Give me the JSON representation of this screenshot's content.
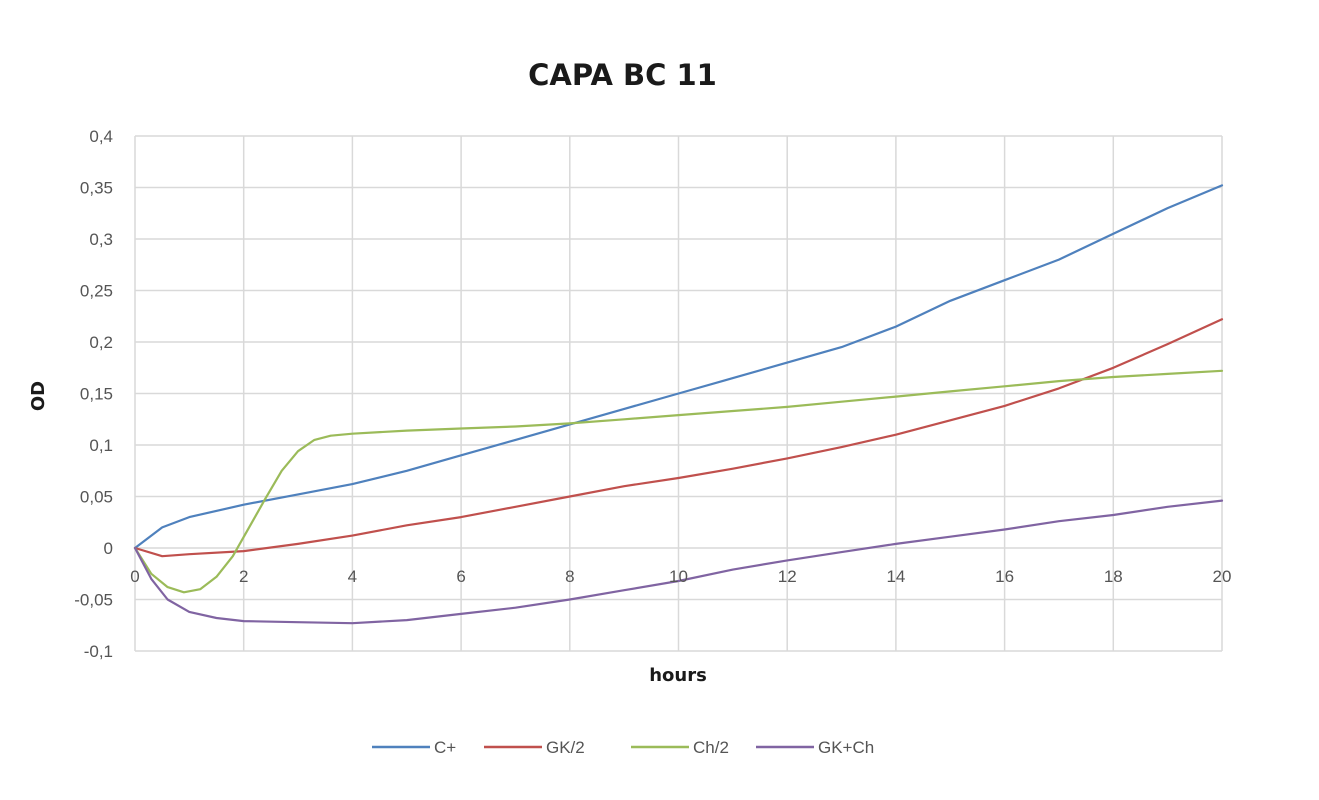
{
  "chart_data": {
    "type": "line",
    "title": "CAPA BC 11",
    "xlabel": "hours",
    "ylabel": "OD",
    "xlim": [
      0,
      20
    ],
    "ylim": [
      -0.1,
      0.4
    ],
    "x_ticks": [
      "0",
      "2",
      "4",
      "6",
      "8",
      "10",
      "12",
      "14",
      "16",
      "18",
      "20"
    ],
    "y_ticks": [
      "-0,1",
      "-0,05",
      "0",
      "0,05",
      "0,1",
      "0,15",
      "0,2",
      "0,25",
      "0,3",
      "0,35",
      "0,4"
    ],
    "grid": true,
    "legend_position": "bottom",
    "series": [
      {
        "name": "C+",
        "color": "#4f81bd",
        "x": [
          0,
          0.5,
          1,
          2,
          3,
          4,
          5,
          6,
          7,
          8,
          9,
          10,
          11,
          12,
          13,
          14,
          15,
          16,
          17,
          18,
          19,
          20
        ],
        "y": [
          0,
          0.02,
          0.03,
          0.042,
          0.052,
          0.062,
          0.075,
          0.09,
          0.105,
          0.12,
          0.135,
          0.15,
          0.165,
          0.18,
          0.195,
          0.215,
          0.24,
          0.26,
          0.28,
          0.305,
          0.33,
          0.352
        ]
      },
      {
        "name": "GK/2",
        "color": "#c0504d",
        "x": [
          0,
          0.5,
          1,
          2,
          3,
          4,
          5,
          6,
          7,
          8,
          9,
          10,
          11,
          12,
          13,
          14,
          15,
          16,
          17,
          18,
          19,
          20
        ],
        "y": [
          0,
          -0.008,
          -0.006,
          -0.003,
          0.004,
          0.012,
          0.022,
          0.03,
          0.04,
          0.05,
          0.06,
          0.068,
          0.077,
          0.087,
          0.098,
          0.11,
          0.124,
          0.138,
          0.155,
          0.175,
          0.198,
          0.222
        ]
      },
      {
        "name": "Ch/2",
        "color": "#9bbb59",
        "x": [
          0,
          0.3,
          0.6,
          0.9,
          1.2,
          1.5,
          1.8,
          2.1,
          2.4,
          2.7,
          3,
          3.3,
          3.6,
          4,
          5,
          6,
          7,
          8,
          9,
          10,
          11,
          12,
          13,
          14,
          15,
          16,
          17,
          18,
          19,
          20
        ],
        "y": [
          0,
          -0.025,
          -0.038,
          -0.043,
          -0.04,
          -0.028,
          -0.008,
          0.02,
          0.048,
          0.075,
          0.094,
          0.105,
          0.109,
          0.111,
          0.114,
          0.116,
          0.118,
          0.121,
          0.125,
          0.129,
          0.133,
          0.137,
          0.142,
          0.147,
          0.152,
          0.157,
          0.162,
          0.166,
          0.169,
          0.172
        ]
      },
      {
        "name": "GK+Ch",
        "color": "#8064a2",
        "x": [
          0,
          0.3,
          0.6,
          1,
          1.5,
          2,
          3,
          4,
          5,
          6,
          7,
          8,
          9,
          10,
          11,
          12,
          13,
          14,
          15,
          16,
          17,
          18,
          19,
          20
        ],
        "y": [
          0,
          -0.03,
          -0.05,
          -0.062,
          -0.068,
          -0.071,
          -0.072,
          -0.073,
          -0.07,
          -0.064,
          -0.058,
          -0.05,
          -0.041,
          -0.032,
          -0.021,
          -0.012,
          -0.004,
          0.004,
          0.011,
          0.018,
          0.026,
          0.032,
          0.04,
          0.046
        ]
      }
    ]
  }
}
